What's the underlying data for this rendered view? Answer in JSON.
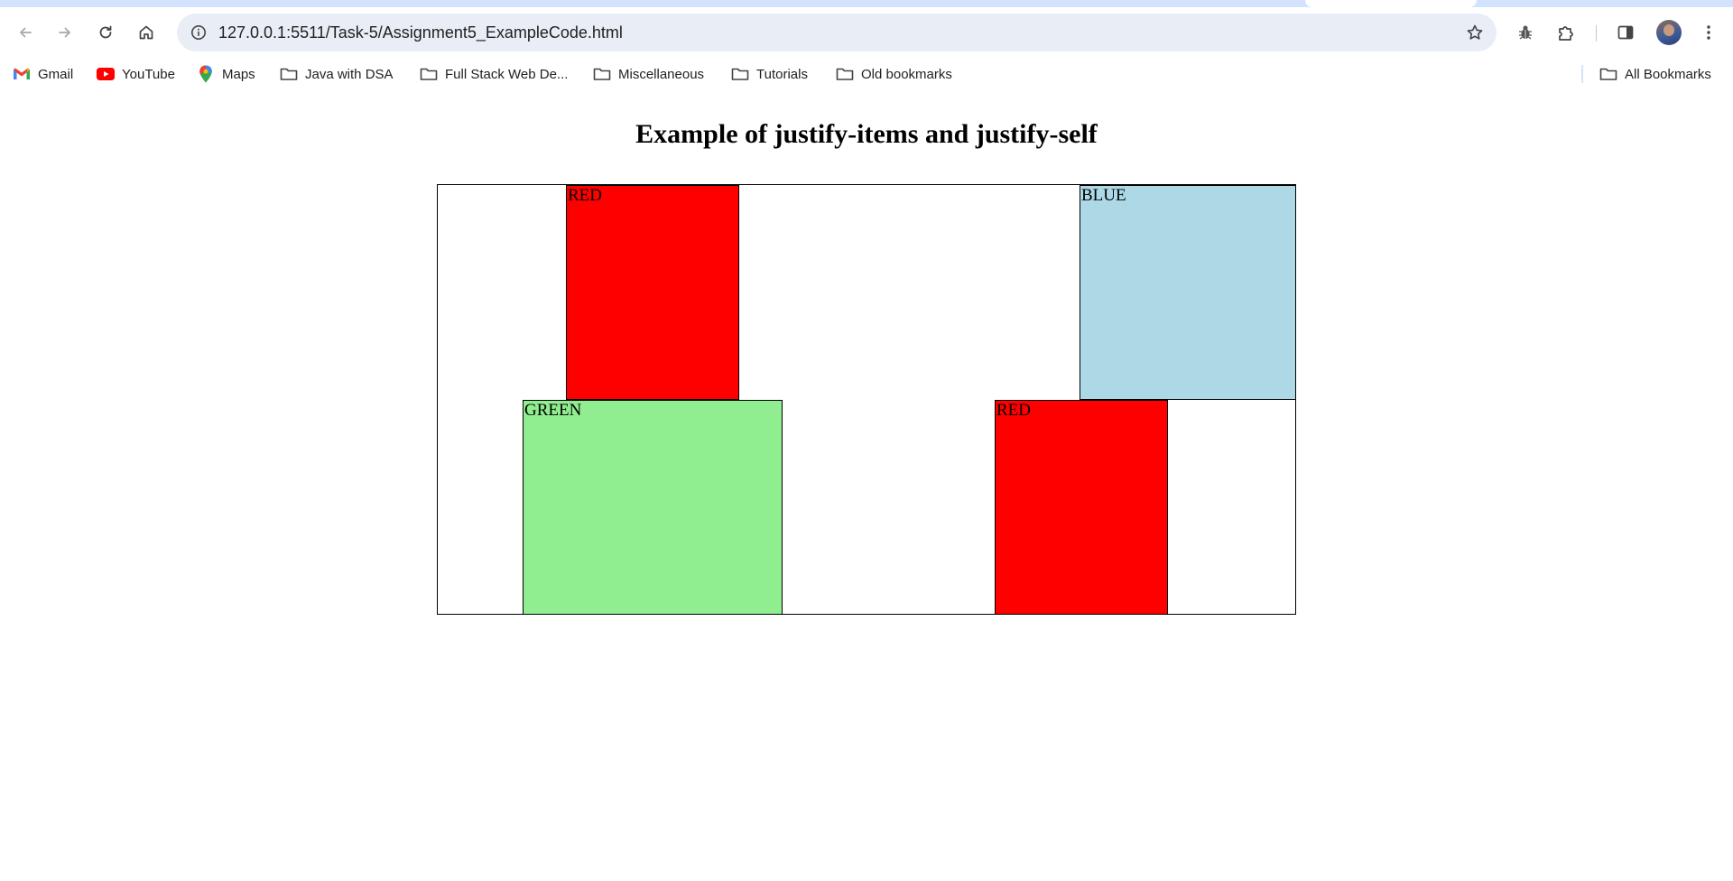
{
  "browser": {
    "url": "127.0.0.1:5511/Task-5/Assignment5_ExampleCode.html",
    "icons": {
      "back": "back-arrow-icon",
      "forward": "forward-arrow-icon",
      "reload": "reload-icon",
      "home": "home-icon",
      "site_info": "info-icon",
      "bookmark_star": "star-icon",
      "extension_bug": "bug-icon",
      "extensions": "puzzle-icon",
      "side_panel": "side-panel-icon",
      "menu": "kebab-menu-icon"
    }
  },
  "bookmarks": {
    "items": [
      {
        "label": "Gmail",
        "icon": "gmail-icon"
      },
      {
        "label": "YouTube",
        "icon": "youtube-icon"
      },
      {
        "label": "Maps",
        "icon": "maps-pin-icon"
      },
      {
        "label": "Java with DSA",
        "icon": "folder-icon"
      },
      {
        "label": "Full Stack Web De...",
        "icon": "folder-icon"
      },
      {
        "label": "Miscellaneous",
        "icon": "folder-icon"
      },
      {
        "label": "Tutorials",
        "icon": "folder-icon"
      },
      {
        "label": "Old bookmarks",
        "icon": "folder-icon"
      }
    ],
    "all_bookmarks": {
      "label": "All Bookmarks",
      "icon": "folder-icon"
    }
  },
  "page": {
    "title": "Example of justify-items and justify-self",
    "cells": [
      {
        "label": "RED",
        "color": "#ff0000"
      },
      {
        "label": "BLUE",
        "color": "#add8e6"
      },
      {
        "label": "GREEN",
        "color": "#90ee90"
      },
      {
        "label": "RED",
        "color": "#ff0000"
      }
    ]
  }
}
